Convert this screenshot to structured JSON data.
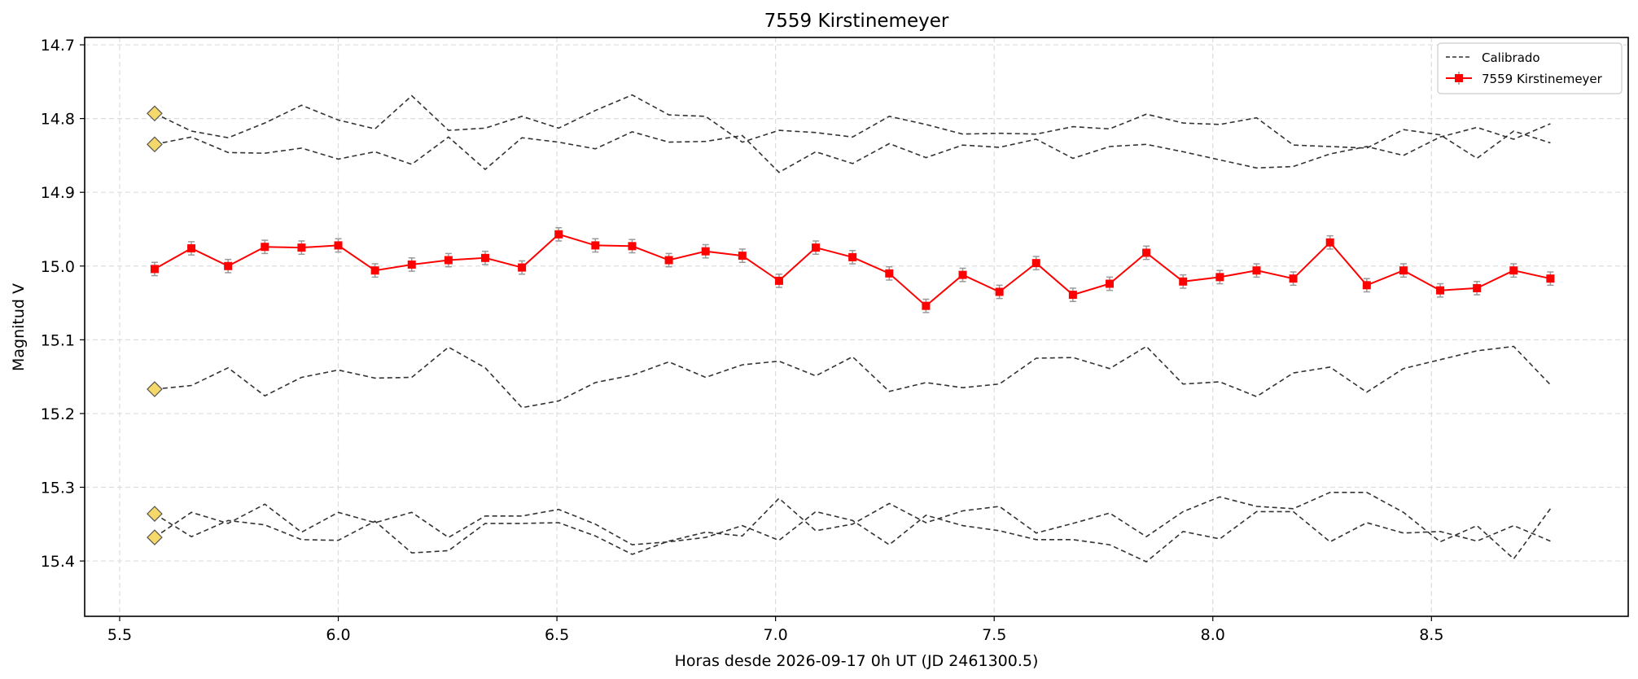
{
  "chart_data": {
    "type": "line",
    "title": "7559 Kirstinemeyer",
    "xlabel": "Horas desde 2026-09-17 0h UT (JD 2461300.5)",
    "ylabel": "Magnitud V",
    "xlim": [
      5.42,
      8.95
    ],
    "ylim": [
      15.475,
      14.69
    ],
    "y_inverted": true,
    "grid": true,
    "legend_position": "top-right",
    "xticks": [
      5.5,
      6.0,
      6.5,
      7.0,
      7.5,
      8.0,
      8.5
    ],
    "xtick_labels": [
      "5.5",
      "6.0",
      "6.5",
      "7.0",
      "7.5",
      "8.0",
      "8.5"
    ],
    "yticks": [
      14.7,
      14.8,
      14.9,
      15.0,
      15.1,
      15.2,
      15.3,
      15.4
    ],
    "ytick_labels": [
      "14.7",
      "14.8",
      "14.9",
      "15.0",
      "15.1",
      "15.2",
      "15.3",
      "15.4"
    ],
    "x": [
      5.58,
      5.664,
      5.748,
      5.832,
      5.916,
      6.0,
      6.084,
      6.168,
      6.252,
      6.336,
      6.42,
      6.504,
      6.588,
      6.672,
      6.756,
      6.84,
      6.924,
      7.008,
      7.092,
      7.176,
      7.26,
      7.344,
      7.428,
      7.512,
      7.596,
      7.68,
      7.764,
      7.848,
      7.932,
      8.016,
      8.1,
      8.184,
      8.268,
      8.352,
      8.436,
      8.52,
      8.604,
      8.688,
      8.772
    ],
    "series": [
      {
        "name": "7559 Kirstinemeyer",
        "color": "#ff0000",
        "marker": "square",
        "values": [
          15.004,
          14.976,
          15.0,
          14.974,
          14.975,
          14.972,
          15.006,
          14.998,
          14.992,
          14.989,
          15.002,
          14.957,
          14.972,
          14.973,
          14.992,
          14.98,
          14.986,
          15.02,
          14.975,
          14.988,
          15.01,
          15.054,
          15.012,
          15.035,
          14.996,
          15.039,
          15.024,
          14.982,
          15.021,
          15.015,
          15.006,
          15.017,
          14.968,
          15.026,
          15.006,
          15.033,
          15.03,
          15.006,
          15.017
        ],
        "errors": [
          0.009,
          0.009,
          0.009,
          0.009,
          0.009,
          0.009,
          0.009,
          0.009,
          0.009,
          0.009,
          0.009,
          0.009,
          0.009,
          0.009,
          0.009,
          0.009,
          0.009,
          0.009,
          0.009,
          0.009,
          0.009,
          0.009,
          0.009,
          0.009,
          0.009,
          0.009,
          0.009,
          0.009,
          0.009,
          0.009,
          0.009,
          0.009,
          0.009,
          0.009,
          0.009,
          0.009,
          0.009,
          0.009,
          0.009
        ]
      },
      {
        "name": "Calibrado",
        "color": "#333333",
        "style": "dashed",
        "start_marker": "diamond",
        "values": [
          14.793,
          14.817,
          14.826,
          14.806,
          14.782,
          14.802,
          14.814,
          14.769,
          14.816,
          14.813,
          14.797,
          14.813,
          14.789,
          14.768,
          14.795,
          14.797,
          14.832,
          14.816,
          14.819,
          14.825,
          14.797,
          14.808,
          14.821,
          14.82,
          14.821,
          14.811,
          14.814,
          14.794,
          14.806,
          14.808,
          14.799,
          14.836,
          14.838,
          14.84,
          14.815,
          14.822,
          14.854,
          14.817,
          14.833
        ]
      },
      {
        "color": "#333333",
        "style": "dashed",
        "start_marker": "diamond",
        "values": [
          14.835,
          14.825,
          14.846,
          14.847,
          14.84,
          14.855,
          14.845,
          14.862,
          14.825,
          14.869,
          14.826,
          14.832,
          14.841,
          14.818,
          14.832,
          14.831,
          14.823,
          14.873,
          14.845,
          14.861,
          14.834,
          14.853,
          14.836,
          14.839,
          14.828,
          14.854,
          14.838,
          14.835,
          14.845,
          14.856,
          14.867,
          14.865,
          14.848,
          14.838,
          14.85,
          14.825,
          14.812,
          14.828,
          14.807
        ]
      },
      {
        "color": "#333333",
        "style": "dashed",
        "start_marker": "diamond",
        "values": [
          15.167,
          15.162,
          15.138,
          15.176,
          15.151,
          15.141,
          15.152,
          15.151,
          15.11,
          15.138,
          15.192,
          15.183,
          15.158,
          15.148,
          15.13,
          15.151,
          15.134,
          15.129,
          15.149,
          15.123,
          15.17,
          15.158,
          15.165,
          15.16,
          15.125,
          15.124,
          15.139,
          15.109,
          15.16,
          15.157,
          15.177,
          15.145,
          15.137,
          15.171,
          15.139,
          15.127,
          15.115,
          15.109,
          15.161
        ]
      },
      {
        "color": "#333333",
        "style": "dashed",
        "start_marker": "diamond",
        "values": [
          15.336,
          15.367,
          15.345,
          15.351,
          15.371,
          15.372,
          15.346,
          15.389,
          15.386,
          15.349,
          15.349,
          15.348,
          15.366,
          15.391,
          15.373,
          15.361,
          15.366,
          15.315,
          15.359,
          15.35,
          15.322,
          15.348,
          15.332,
          15.326,
          15.362,
          15.349,
          15.335,
          15.367,
          15.333,
          15.313,
          15.326,
          15.329,
          15.307,
          15.307,
          15.334,
          15.374,
          15.352,
          15.397,
          15.329
        ]
      },
      {
        "color": "#333333",
        "style": "dashed",
        "start_marker": "diamond",
        "values": [
          15.368,
          15.334,
          15.349,
          15.323,
          15.361,
          15.334,
          15.348,
          15.334,
          15.368,
          15.339,
          15.339,
          15.33,
          15.35,
          15.378,
          15.374,
          15.368,
          15.352,
          15.372,
          15.333,
          15.345,
          15.378,
          15.338,
          15.352,
          15.359,
          15.371,
          15.371,
          15.378,
          15.401,
          15.36,
          15.37,
          15.333,
          15.333,
          15.374,
          15.348,
          15.362,
          15.36,
          15.373,
          15.352,
          15.373
        ]
      }
    ],
    "legend": [
      "Calibrado",
      "7559 Kirstinemeyer"
    ]
  }
}
